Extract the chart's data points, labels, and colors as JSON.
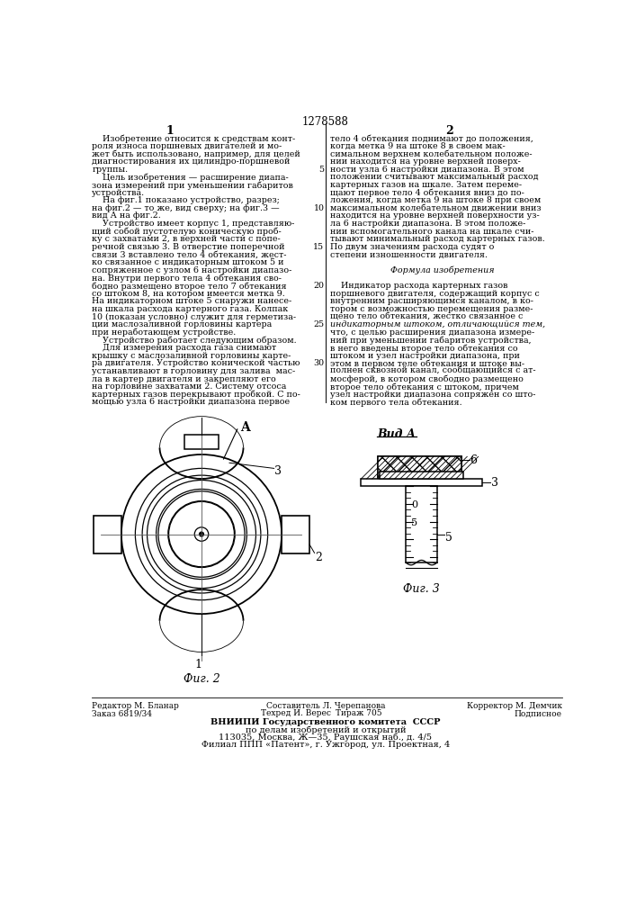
{
  "patent_number": "1278588",
  "col1_header": "1",
  "col2_header": "2",
  "col1_text": [
    "    Изобретение относится к средствам конт-",
    "роля износа поршневых двигателей и мо-",
    "жет быть использовано, например, для целей",
    "диагностирования их цилиндро-поршневой",
    "группы.",
    "    Цель изобретения — расширение диапа-",
    "зона измерений при уменьшении габаритов",
    "устройства.",
    "    На фиг.1 показано устройство, разрез;",
    "на фиг.2 — то же, вид сверху; на фиг.3 —",
    "вид А на фиг.2.",
    "    Устройство имеет корпус 1, представляю-",
    "щий собой пустотелую коническую проб-",
    "ку с захватами 2, в верхней части с попе-",
    "речной связью 3. В отверстие поперечной",
    "связи 3 вставлено тело 4 обтекания, жест-",
    "ко связанное с индикаторным штоком 5 и",
    "сопряженное с узлом 6 настройки диапазо-",
    "на. Внутри первого тела 4 обтекания сво-",
    "бодно размещено второе тело 7 обтекания",
    "со штоком 8, на котором имеется метка 9.",
    "На индикаторном штоке 5 снаружи нанесе-",
    "на шкала расхода картерного газа. Колпак",
    "10 (показан условно) служит для герметиза-",
    "ции маслозаливной горловины картера",
    "при неработающем устройстве.",
    "    Устройство работает следующим образом.",
    "    Для измерения расхода газа снимают",
    "крышку с маслозаливной горловины карте-",
    "ра двигателя. Устройство конической частью",
    "устанавливают в горловину для залива  мас-",
    "ла в картер двигателя и закрепляют его",
    "на горловине захватами 2. Систему отсоса",
    "картерных газов перекрывают пробкой. С по-",
    "мощью узла 6 настройки диапазона первое"
  ],
  "col2_text": [
    "тело 4 обтекания поднимают до положения,",
    "когда метка 9 на штоке 8 в своем мак-",
    "симальном верхнем колебательном положе-",
    "нии находится на уровне верхней поверх-",
    "ности узла 6 настройки диапазона. В этом",
    "положении считывают максимальный расход",
    "картерных газов на шкале. Затем переме-",
    "щают первое тело 4 обтекания вниз до по-",
    "ложения, когда метка 9 на штоке 8 при своем",
    "максимальном колебательном движении вниз",
    "находится на уровне верхней поверхности уз-",
    "ла 6 настройки диапазона. В этом положе-",
    "нии вспомогательного канала на шкале счи-",
    "тывают минимальный расход картерных газов.",
    "По двум значениям расхода судят о",
    "степени изношенности двигателя.",
    "",
    "Формула изобретения",
    "",
    "    Индикатор расхода картерных газов",
    "поршневого двигателя, содержащий корпус с",
    "внутренним расширяющимся каналом, в ко-",
    "тором с возможностью перемещения разме-",
    "щено тело обтекания, жестко связанное с",
    "индикаторным штоком, отличающийся тем,",
    "что, с целью расширения диапазона измере-",
    "ний при уменьшении габаритов устройства,",
    "в него введены второе тело обтекания со",
    "штоком и узел настройки диапазона, при",
    "этом в первом теле обтекания и штоке вы-",
    "полнен сквозной канал, сообщающийся с ат-",
    "мосферой, в котором свободно размещено",
    "второе тело обтекания с штоком, причем",
    "узел настройки диапазона сопряжен со што-",
    "ком первого тела обтекания."
  ],
  "line_numbers_rows": [
    5,
    10,
    15,
    20,
    25,
    30
  ],
  "fig2_label": "Фиг. 2",
  "fig3_label": "Фиг. 3",
  "view_label": "Вид А",
  "footer_editor": "Редактор М. Бланар",
  "footer_order": "Заказ 6819/34",
  "footer_author": "Составитель Л. Черепанова",
  "footer_techred": "Техред И. Верес",
  "footer_tirazh": "Тираж 705",
  "footer_corrector": "Корректор М. Демчик",
  "footer_podpisnoe": "Подписное",
  "footer_vniiipi": "ВНИИПИ Государственного комитета  СССР",
  "footer_po": "по делам изобретений и открытий",
  "footer_address": "113035, Москва, Ж—35, Раушская наб., д. 4/5",
  "footer_filial": "Филиал ППП «Патент», г. Ужгород, ул. Проектная, 4",
  "bg_color": "#ffffff"
}
